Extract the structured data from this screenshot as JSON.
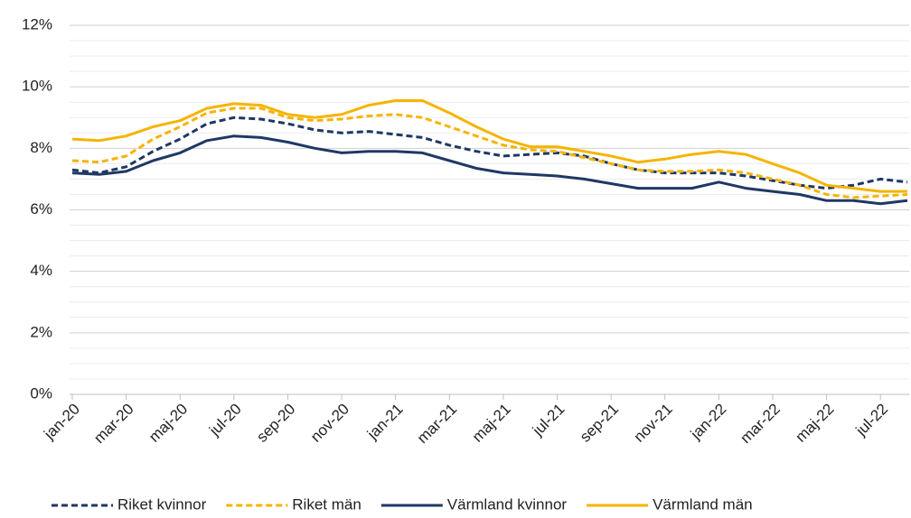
{
  "chart_data": {
    "type": "line",
    "categories": [
      "jan-20",
      null,
      "mar-20",
      null,
      "maj-20",
      null,
      "jul-20",
      null,
      "sep-20",
      null,
      "nov-20",
      null,
      "jan-21",
      null,
      "mar-21",
      null,
      "maj-21",
      null,
      "jul-21",
      null,
      "sep-21",
      null,
      "nov-21",
      null,
      "jan-22",
      null,
      "mar-22",
      null,
      "maj-22",
      null,
      "jul-22",
      null
    ],
    "series": [
      {
        "name": "Riket kvinnor",
        "color": "#1f3864",
        "dashed": true,
        "values": [
          7.3,
          7.2,
          7.4,
          7.9,
          8.3,
          8.8,
          9.0,
          8.95,
          8.8,
          8.6,
          8.5,
          8.55,
          8.45,
          8.35,
          8.1,
          7.9,
          7.75,
          7.8,
          7.85,
          7.75,
          7.5,
          7.3,
          7.2,
          7.2,
          7.2,
          7.1,
          6.95,
          6.8,
          6.7,
          6.8,
          7.0,
          6.9
        ]
      },
      {
        "name": "Riket män",
        "color": "#f5b400",
        "dashed": true,
        "values": [
          7.6,
          7.55,
          7.75,
          8.3,
          8.7,
          9.15,
          9.3,
          9.3,
          9.0,
          8.9,
          8.95,
          9.05,
          9.1,
          9.0,
          8.7,
          8.4,
          8.1,
          7.95,
          7.9,
          7.7,
          7.5,
          7.3,
          7.25,
          7.25,
          7.3,
          7.2,
          7.0,
          6.8,
          6.5,
          6.4,
          6.45,
          6.5
        ]
      },
      {
        "name": "Värmland kvinnor",
        "color": "#1f3864",
        "dashed": false,
        "values": [
          7.2,
          7.15,
          7.25,
          7.6,
          7.85,
          8.25,
          8.4,
          8.35,
          8.2,
          8.0,
          7.85,
          7.9,
          7.9,
          7.85,
          7.6,
          7.35,
          7.2,
          7.15,
          7.1,
          7.0,
          6.85,
          6.7,
          6.7,
          6.7,
          6.9,
          6.7,
          6.6,
          6.5,
          6.3,
          6.3,
          6.2,
          6.3
        ]
      },
      {
        "name": "Värmland män",
        "color": "#f5b400",
        "dashed": false,
        "values": [
          8.3,
          8.25,
          8.4,
          8.7,
          8.9,
          9.3,
          9.45,
          9.4,
          9.1,
          9.0,
          9.1,
          9.4,
          9.55,
          9.55,
          9.15,
          8.7,
          8.3,
          8.05,
          8.05,
          7.9,
          7.75,
          7.55,
          7.65,
          7.8,
          7.9,
          7.8,
          7.5,
          7.2,
          6.8,
          6.7,
          6.6,
          6.6
        ]
      }
    ],
    "ylim": [
      0,
      12
    ],
    "yticks": [
      {
        "value": 0,
        "label": "0%"
      },
      {
        "value": 2,
        "label": "2%"
      },
      {
        "value": 4,
        "label": "4%"
      },
      {
        "value": 6,
        "label": "6%"
      },
      {
        "value": 8,
        "label": "8%"
      },
      {
        "value": 10,
        "label": "10%"
      },
      {
        "value": 12,
        "label": "12%"
      }
    ],
    "minor_yticks": [
      0.5,
      1,
      1.5,
      2.5,
      3,
      3.5,
      4.5,
      5,
      5.5,
      6.5,
      7,
      7.5,
      8.5,
      9,
      9.5,
      10.5,
      11,
      11.5
    ],
    "grid": true,
    "legend": "bottom"
  }
}
